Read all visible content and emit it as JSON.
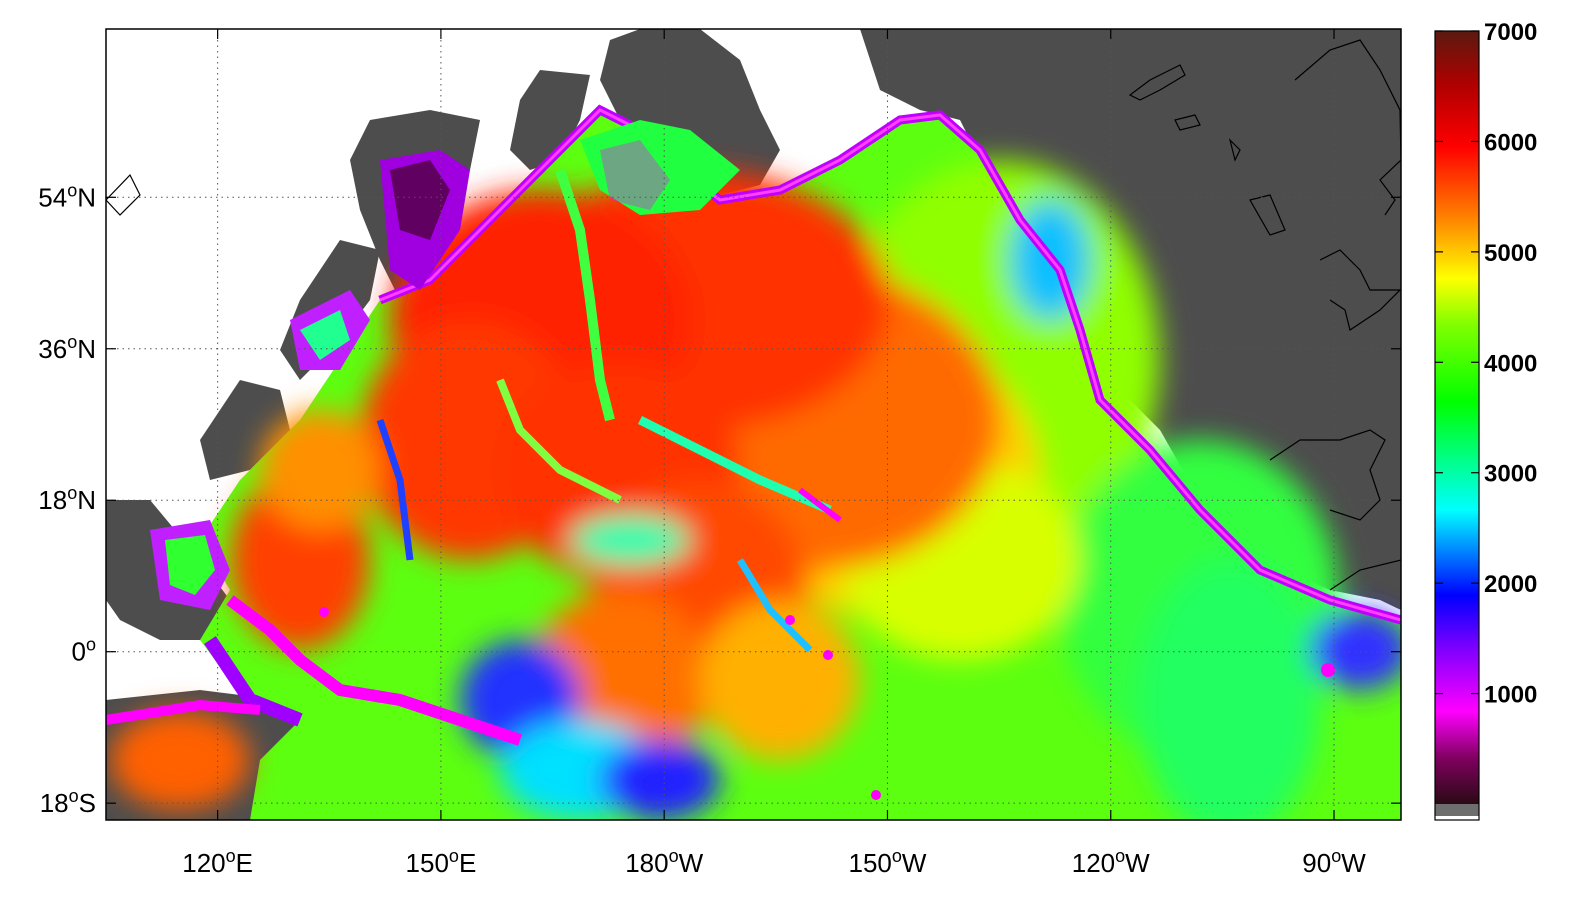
{
  "map": {
    "type": "map",
    "extent": {
      "lon_min": 105,
      "lon_max": 279,
      "lat_min": -20,
      "lat_max": 74
    },
    "x_ticks": [
      {
        "lon": 120,
        "deg": "120",
        "hemi": "E"
      },
      {
        "lon": 150,
        "deg": "150",
        "hemi": "E"
      },
      {
        "lon": 180,
        "deg": "180",
        "hemi": "W"
      },
      {
        "lon": 210,
        "deg": "150",
        "hemi": "W"
      },
      {
        "lon": 240,
        "deg": "120",
        "hemi": "W"
      },
      {
        "lon": 270,
        "deg": "90",
        "hemi": "W"
      }
    ],
    "y_ticks": [
      {
        "lat": 54,
        "deg": "54",
        "hemi": "N"
      },
      {
        "lat": 36,
        "deg": "36",
        "hemi": "N"
      },
      {
        "lat": 18,
        "deg": "18",
        "hemi": "N"
      },
      {
        "lat": 0,
        "deg": "0",
        "hemi": ""
      },
      {
        "lat": -18,
        "deg": "18",
        "hemi": "S"
      }
    ],
    "grid": true,
    "grid_style": "dotted",
    "land_color": "#4d4d4d",
    "coastline_color": "#000000"
  },
  "colorbar": {
    "position": "right",
    "min": 0,
    "max": 7000,
    "ticks": [
      "7000",
      "6000",
      "5000",
      "4000",
      "3000",
      "2000",
      "1000"
    ],
    "tick_values": [
      7000,
      6000,
      5000,
      4000,
      3000,
      2000,
      1000
    ],
    "colors": [
      "#2a0a14",
      "#800060",
      "#ff00ff",
      "#8000ff",
      "#0000ff",
      "#00ffff",
      "#00ff00",
      "#80ff00",
      "#ffff00",
      "#ff8000",
      "#ff0000",
      "#b00000",
      "#5a1a10"
    ],
    "land_swatch_color": "#6e6e6e"
  }
}
